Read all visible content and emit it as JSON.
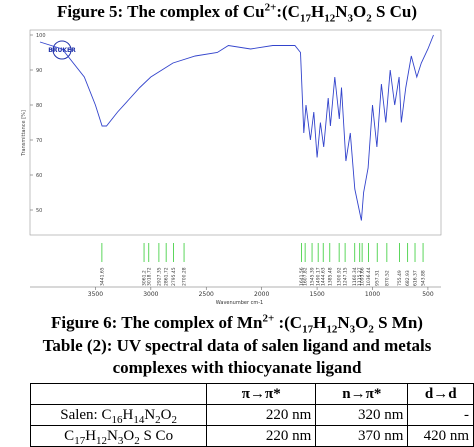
{
  "figure5_caption": [
    {
      "text": "Figure 5: The complex of Cu"
    },
    {
      "text": "2+",
      "script": "sup"
    },
    {
      "text": ":(C"
    },
    {
      "text": "17",
      "script": "sub"
    },
    {
      "text": "H"
    },
    {
      "text": "12",
      "script": "sub"
    },
    {
      "text": "N"
    },
    {
      "text": "3",
      "script": "sub"
    },
    {
      "text": "O"
    },
    {
      "text": "2",
      "script": "sub"
    },
    {
      "text": " S Cu)"
    }
  ],
  "chart_data": {
    "type": "line",
    "logo": "BRUKER",
    "x_label": "Wavenumber cm-1",
    "y_label": "Transmittance [%]",
    "x": [
      4000,
      3800,
      3600,
      3500,
      3440,
      3400,
      3300,
      3100,
      3000,
      2900,
      2800,
      2600,
      2400,
      2300,
      2100,
      1900,
      1700,
      1650,
      1620,
      1600,
      1560,
      1530,
      1500,
      1470,
      1440,
      1400,
      1380,
      1340,
      1300,
      1280,
      1240,
      1200,
      1160,
      1120,
      1100,
      1080,
      1040,
      1000,
      960,
      920,
      880,
      840,
      800,
      760,
      740,
      700,
      650,
      600,
      560,
      500,
      450
    ],
    "series": [
      {
        "color": "#3344cc",
        "values": [
          98,
          96,
          88,
          80,
          74,
          74,
          78,
          85,
          88,
          90,
          92,
          94,
          95,
          97,
          96,
          97,
          97,
          95,
          72,
          80,
          70,
          78,
          65,
          75,
          68,
          82,
          74,
          88,
          76,
          85,
          64,
          72,
          56,
          50,
          47,
          55,
          62,
          80,
          68,
          86,
          75,
          90,
          80,
          88,
          75,
          85,
          94,
          88,
          92,
          96,
          100
        ]
      }
    ],
    "xlim": [
      4000,
      400
    ],
    "ylim": [
      44,
      100
    ],
    "xticks": [
      3500,
      3000,
      2500,
      2000,
      1500,
      1000,
      500
    ],
    "yticks": [
      100,
      90,
      80,
      70,
      60,
      50
    ],
    "peaks": {
      "color": "#33cc33",
      "values": [
        3441.65,
        3061.2,
        3018.72,
        2927.35,
        2861.72,
        2795.45,
        2700.28,
        1641.56,
        1607.82,
        1545.39,
        1490.17,
        1444.63,
        1385.48,
        1300.92,
        1247.15,
        1160.34,
        1115.27,
        1093.66,
        1036.44,
        957.31,
        870.52,
        755.49,
        682.93,
        616.37,
        543.88
      ]
    }
  },
  "figure6_caption": [
    {
      "text": "Figure 6: The complex of Mn"
    },
    {
      "text": "2+",
      "script": "sup"
    },
    {
      "text": " :(C"
    },
    {
      "text": "17",
      "script": "sub"
    },
    {
      "text": "H"
    },
    {
      "text": "12",
      "script": "sub"
    },
    {
      "text": "N"
    },
    {
      "text": "3",
      "script": "sub"
    },
    {
      "text": "O"
    },
    {
      "text": "2",
      "script": "sub"
    },
    {
      "text": " S Mn)"
    }
  ],
  "table": {
    "caption": [
      "Table (2): UV spectral data of salen ligand and metals",
      "complexes with thiocyanate ligand"
    ],
    "header": [
      null,
      "π→π*",
      "n→π*",
      "d→d"
    ],
    "rows": [
      [
        [
          {
            "text": "Salen: C"
          },
          {
            "text": "16",
            "script": "sub"
          },
          {
            "text": "H"
          },
          {
            "text": "14",
            "script": "sub"
          },
          {
            "text": "N"
          },
          {
            "text": "2",
            "script": "sub"
          },
          {
            "text": "O"
          },
          {
            "text": "2",
            "script": "sub"
          }
        ],
        "220 nm",
        "320 nm",
        "-"
      ],
      [
        [
          {
            "text": "C"
          },
          {
            "text": "17",
            "script": "sub"
          },
          {
            "text": "H"
          },
          {
            "text": "12",
            "script": "sub"
          },
          {
            "text": "N"
          },
          {
            "text": "3",
            "script": "sub"
          },
          {
            "text": "O"
          },
          {
            "text": "2",
            "script": "sub"
          },
          {
            "text": " S Co"
          }
        ],
        "220 nm",
        "370 nm",
        "420 nm"
      ]
    ]
  }
}
